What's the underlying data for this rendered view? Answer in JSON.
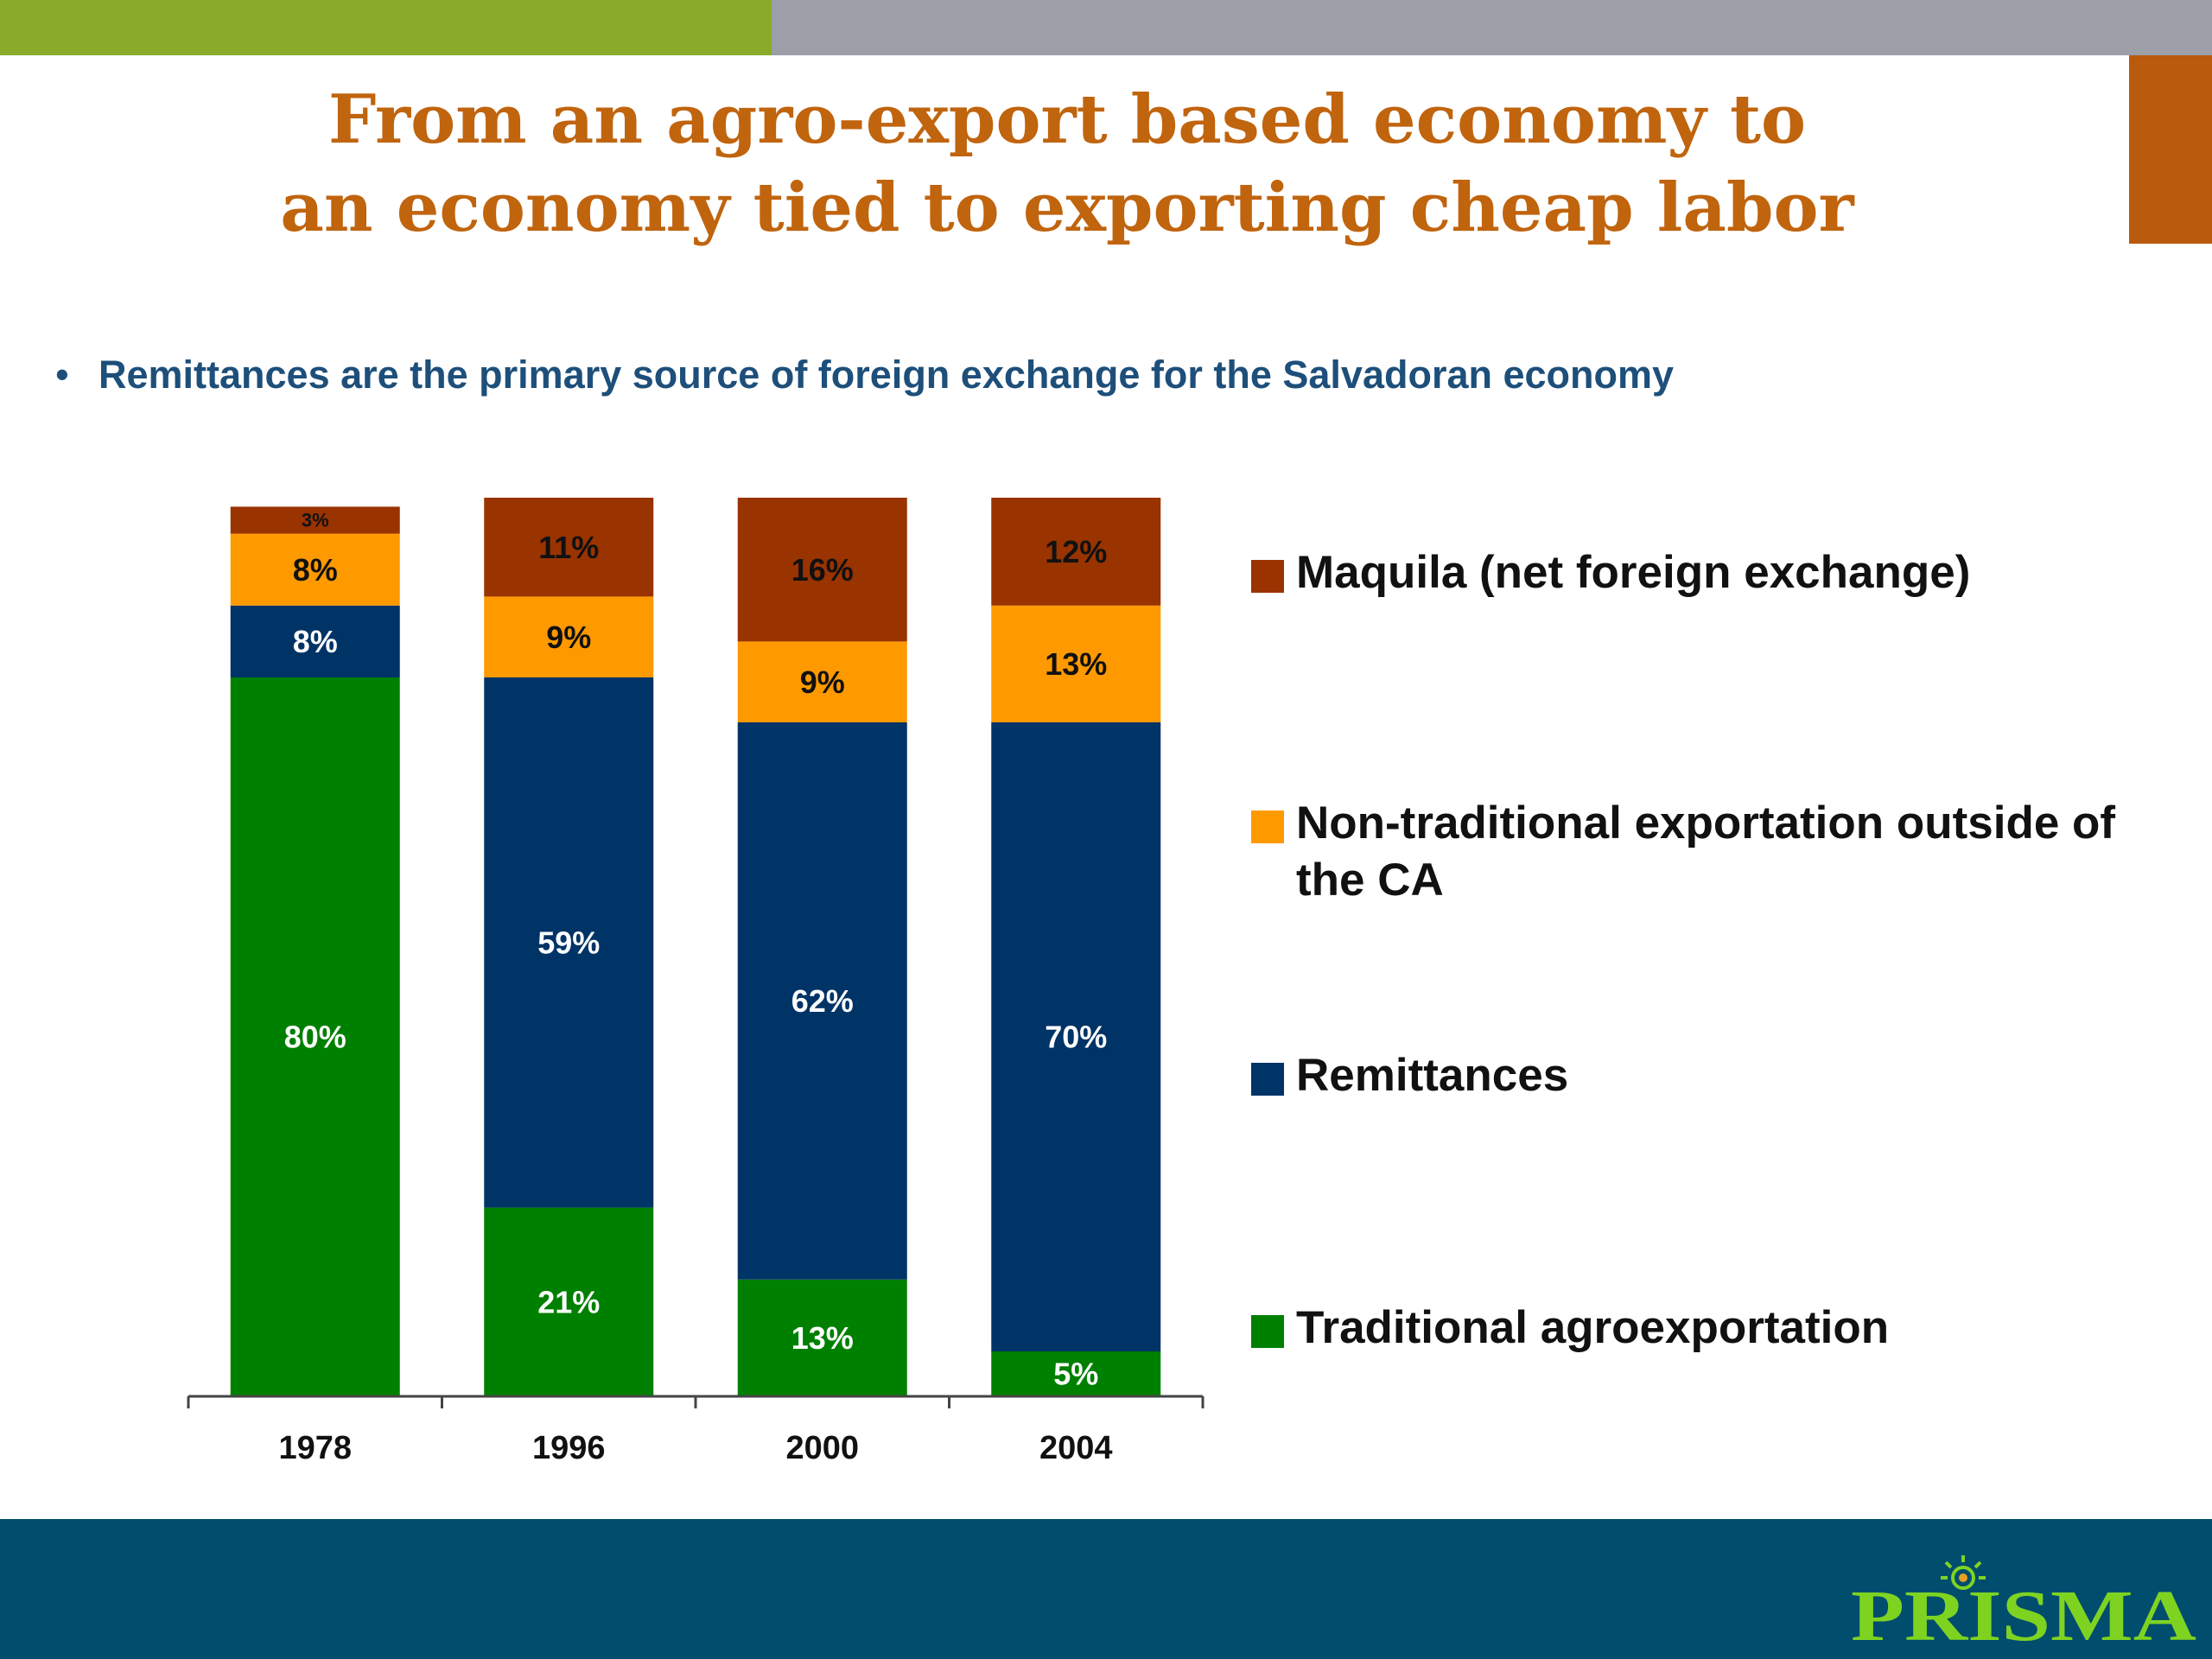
{
  "slide": {
    "title_line1": "From an agro-export based economy to",
    "title_line2": "an economy tied to exporting cheap labor",
    "bullet": "Remittances are the primary source of foreign exchange for the Salvadoran economy",
    "logo_text": "PRISMA"
  },
  "colors": {
    "title": "#c0640e",
    "bullet": "#1d4f7a",
    "top_bar_green": "#8aaa2a",
    "top_bar_grey": "#9c9fa8",
    "footer": "#004d6e",
    "corner_tab": "#b95a0c",
    "logo": "#7ed321"
  },
  "chart_data": {
    "type": "bar",
    "stacked": true,
    "categories": [
      "1978",
      "1996",
      "2000",
      "2004"
    ],
    "series": [
      {
        "name": "Traditional agroexportation",
        "values": [
          80,
          21,
          13,
          5
        ],
        "labels": [
          "80%",
          "21%",
          "13%",
          "5%"
        ],
        "color": "#008000",
        "label_color": "#ffffff"
      },
      {
        "name": "Remittances",
        "values": [
          8,
          59,
          62,
          70
        ],
        "labels": [
          "8%",
          "59%",
          "62%",
          "70%"
        ],
        "color": "#003366",
        "label_color": "#ffffff"
      },
      {
        "name": "Non-traditional exportation outside of the CA",
        "values": [
          8,
          9,
          9,
          13
        ],
        "labels": [
          "8%",
          "9%",
          "9%",
          "13%"
        ],
        "color": "#ff9900",
        "label_color": "#111111"
      },
      {
        "name": "Maquila (net foreign exchange)",
        "values": [
          3,
          11,
          16,
          12
        ],
        "labels": [
          "3%",
          "11%",
          "16%",
          "12%"
        ],
        "color": "#993300",
        "label_color": "#111111"
      }
    ],
    "legend_order": [
      "Maquila (net foreign exchange)",
      "Non-traditional exportation outside of the CA",
      "Remittances",
      "Traditional agroexportation"
    ],
    "legend_position": "right",
    "grid": false,
    "ylim": [
      0,
      100
    ]
  }
}
